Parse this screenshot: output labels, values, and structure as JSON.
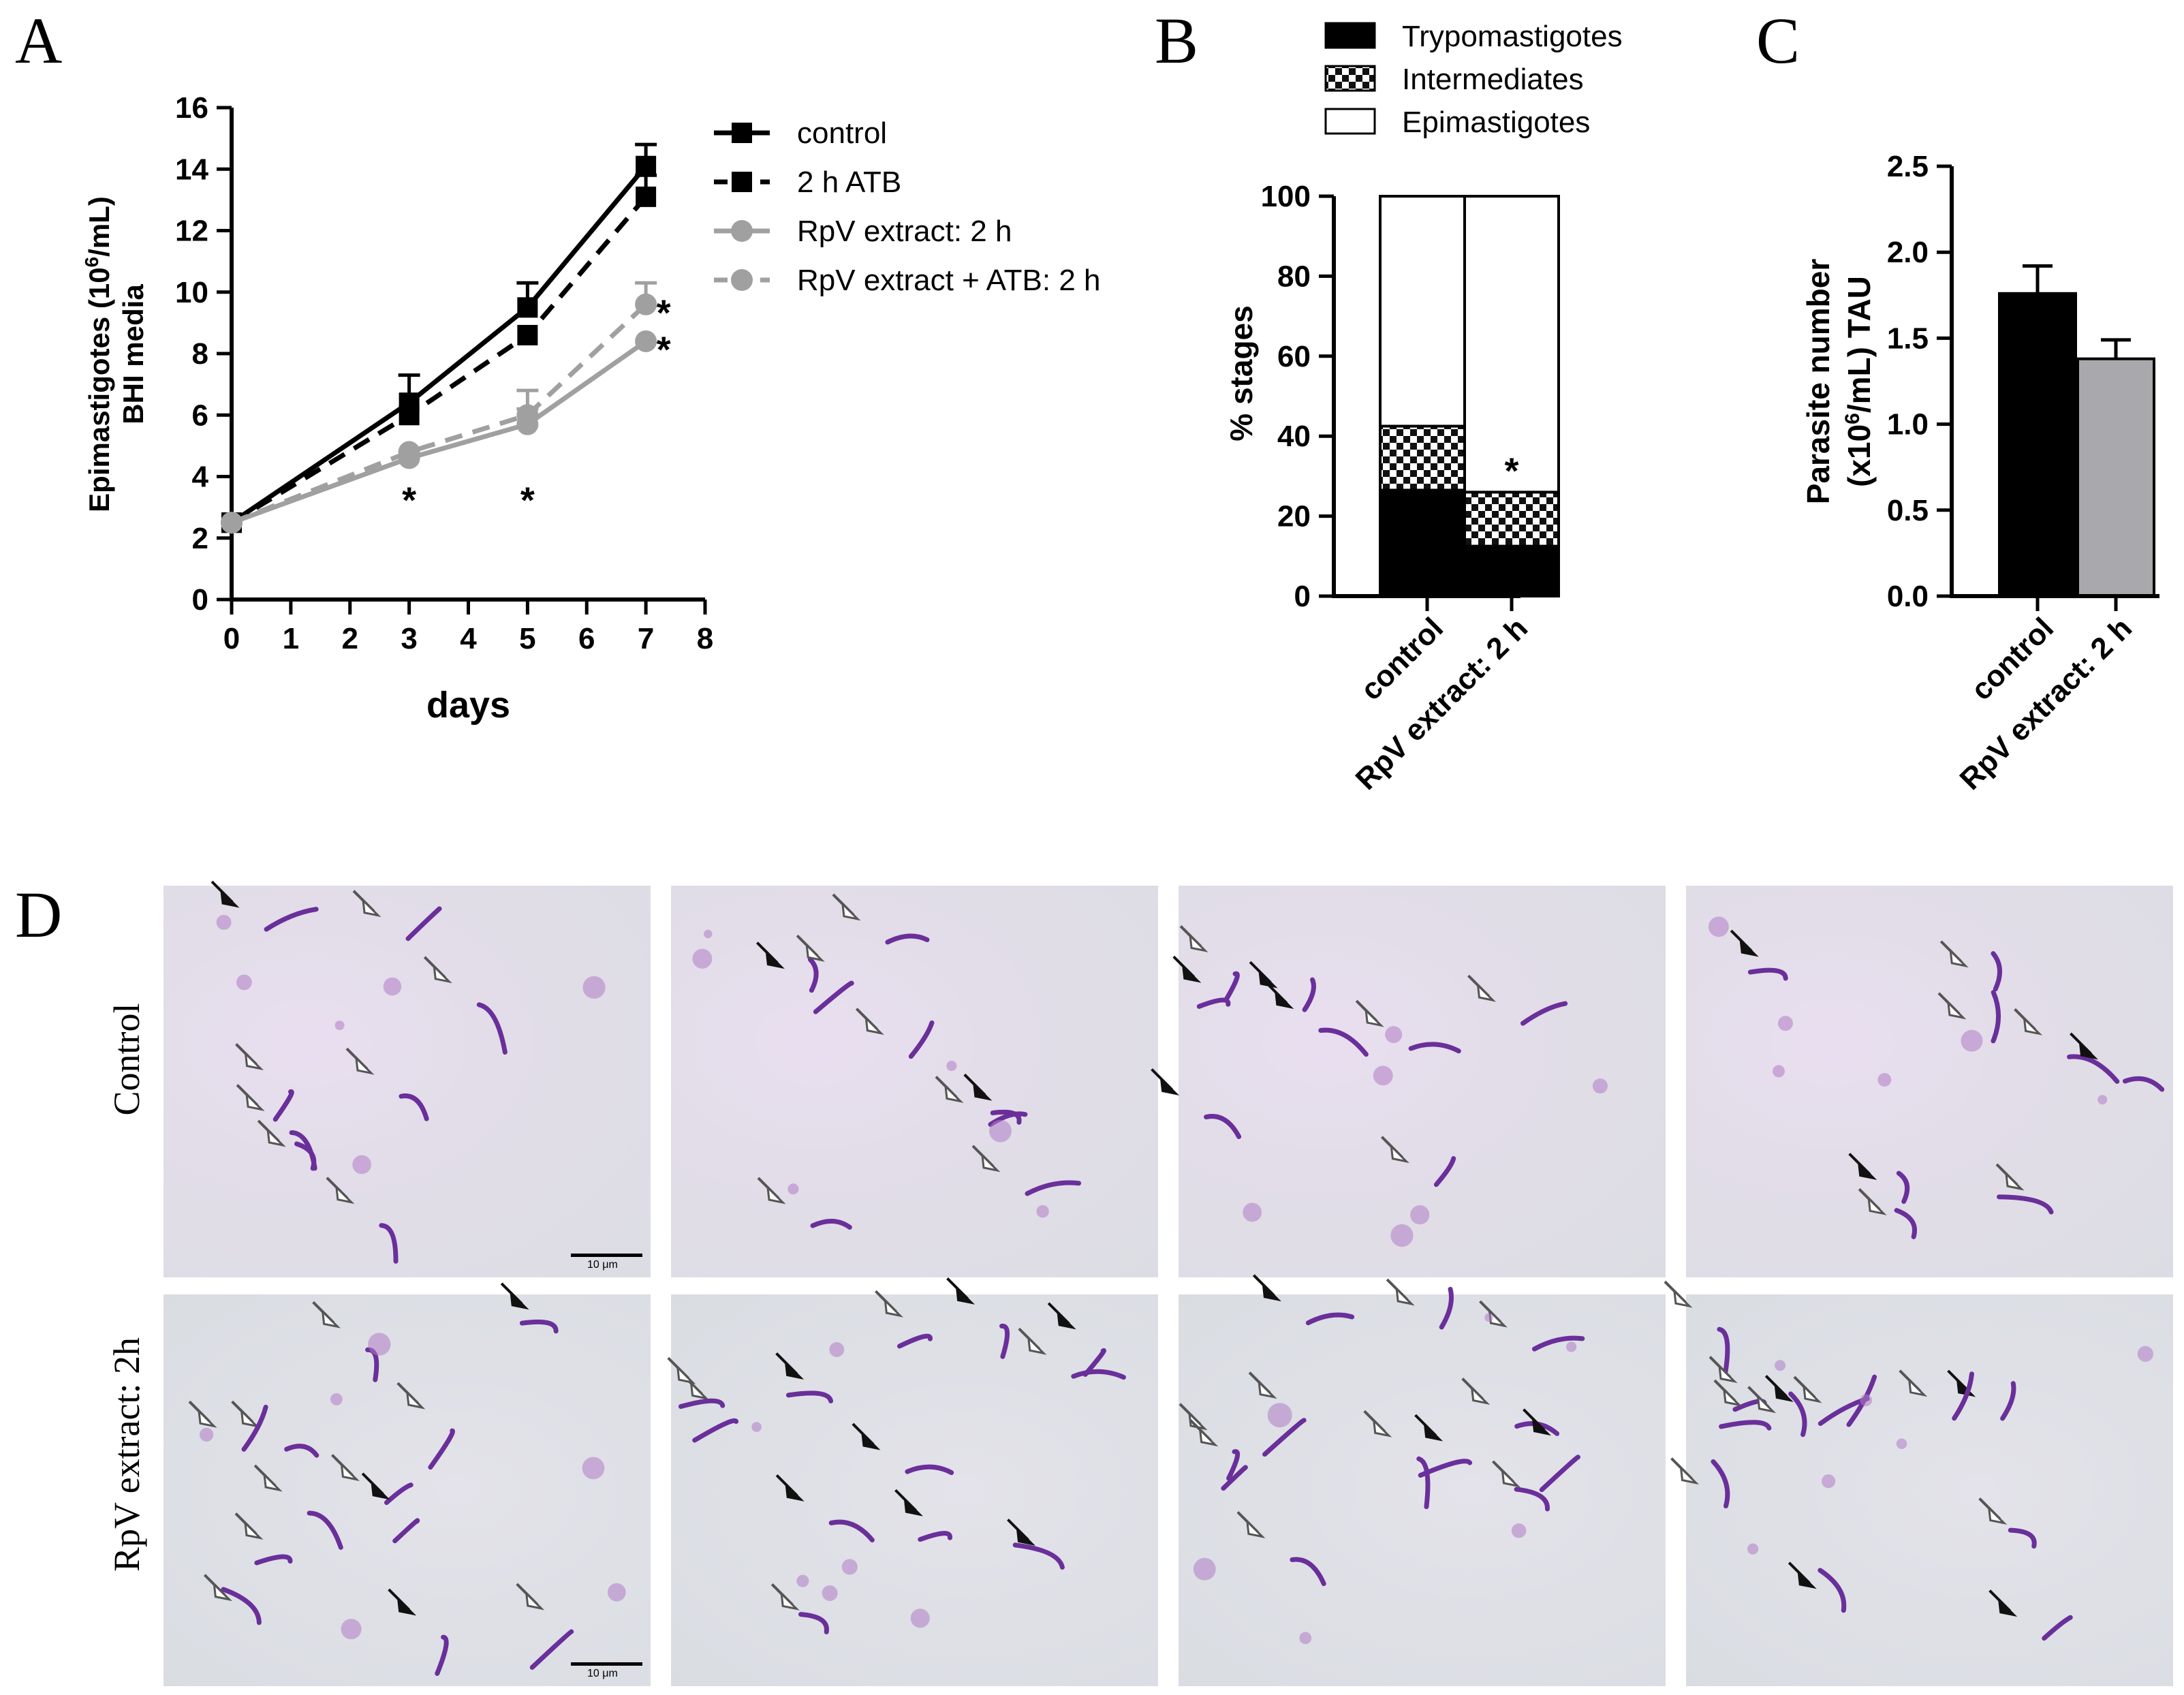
{
  "panels": {
    "A": "A",
    "B": "B",
    "C": "C",
    "D": "D"
  },
  "colors": {
    "black": "#000000",
    "gray": "#a0a0a0",
    "bar_gray": "#a9a9ad"
  },
  "chart_data": [
    {
      "id": "A",
      "type": "line",
      "xlabel": "days",
      "ylabel_line1": "Epimastigotes (10",
      "ylabel_sup": "6",
      "ylabel_line1_end": "/mL)",
      "ylabel_line2": "BHI media",
      "xlim": [
        0,
        8
      ],
      "ylim": [
        0,
        16
      ],
      "xticks": [
        "0",
        "1",
        "2",
        "3",
        "4",
        "5",
        "6",
        "7",
        "8"
      ],
      "yticks": [
        "0",
        "2",
        "4",
        "6",
        "8",
        "10",
        "12",
        "14",
        "16"
      ],
      "legend": "right",
      "series": [
        {
          "name": "control",
          "color": "#000000",
          "dash": false,
          "marker": "square",
          "x": [
            0,
            3,
            5,
            7
          ],
          "y": [
            2.5,
            6.4,
            9.5,
            14.1
          ],
          "err": [
            0,
            0.9,
            0.8,
            0.7
          ]
        },
        {
          "name": "2 h ATB",
          "color": "#000000",
          "dash": true,
          "marker": "square",
          "x": [
            0,
            3,
            5,
            7
          ],
          "y": [
            2.5,
            6.0,
            8.6,
            13.1
          ],
          "err": [
            0,
            0,
            0,
            0.7
          ]
        },
        {
          "name": "RpV extract: 2 h",
          "color": "#a0a0a0",
          "dash": false,
          "marker": "circle",
          "x": [
            0,
            3,
            5,
            7
          ],
          "y": [
            2.5,
            4.6,
            5.7,
            8.4
          ],
          "err": [
            0,
            0,
            0.5,
            0
          ]
        },
        {
          "name": "RpV extract + ATB: 2 h",
          "color": "#a0a0a0",
          "dash": true,
          "marker": "circle",
          "x": [
            0,
            3,
            5,
            7
          ],
          "y": [
            2.5,
            4.8,
            6.0,
            9.6
          ],
          "err": [
            0,
            0,
            0.8,
            0.7
          ]
        }
      ],
      "annotations": [
        {
          "text": "*",
          "x": 3,
          "y": 3.4
        },
        {
          "text": "*",
          "x": 5,
          "y": 3.4
        },
        {
          "text": "*",
          "x": 7.3,
          "y": 9.5
        },
        {
          "text": "*",
          "x": 7.3,
          "y": 8.3
        }
      ]
    },
    {
      "id": "B",
      "type": "bar",
      "stacked": true,
      "ylabel": "% stages",
      "ylim": [
        0,
        100
      ],
      "yticks": [
        "0",
        "20",
        "40",
        "60",
        "80",
        "100"
      ],
      "categories": [
        "control",
        "RpV extract: 2 h"
      ],
      "series": [
        {
          "name": "Trypomastigotes",
          "pattern": "solid-black",
          "values": [
            26.5,
            12.5
          ]
        },
        {
          "name": "Intermediates",
          "pattern": "checker",
          "values": [
            16,
            13.5
          ]
        },
        {
          "name": "Epimastigotes",
          "pattern": "white",
          "values": [
            57.5,
            74
          ]
        }
      ],
      "legend": "top",
      "annotations": [
        {
          "text": "*",
          "category": 1,
          "y": 33
        }
      ]
    },
    {
      "id": "C",
      "type": "bar",
      "ylabel_line1": "Parasite number",
      "ylabel_line2_pre": "(x10",
      "ylabel_sup": "6",
      "ylabel_line2_post": "/mL) TAU",
      "ylim": [
        0,
        2.5
      ],
      "yticks": [
        "0.0",
        "0.5",
        "1.0",
        "1.5",
        "2.0",
        "2.5"
      ],
      "categories": [
        "control",
        "RpV extract: 2 h"
      ],
      "values": [
        1.76,
        1.38
      ],
      "err": [
        0.16,
        0.11
      ],
      "bar_colors": [
        "#000000",
        "#a9a9ad"
      ]
    }
  ],
  "micrographs": {
    "row_labels": [
      "Control",
      "RpV extract: 2h"
    ],
    "scale_text": "10 μm"
  }
}
